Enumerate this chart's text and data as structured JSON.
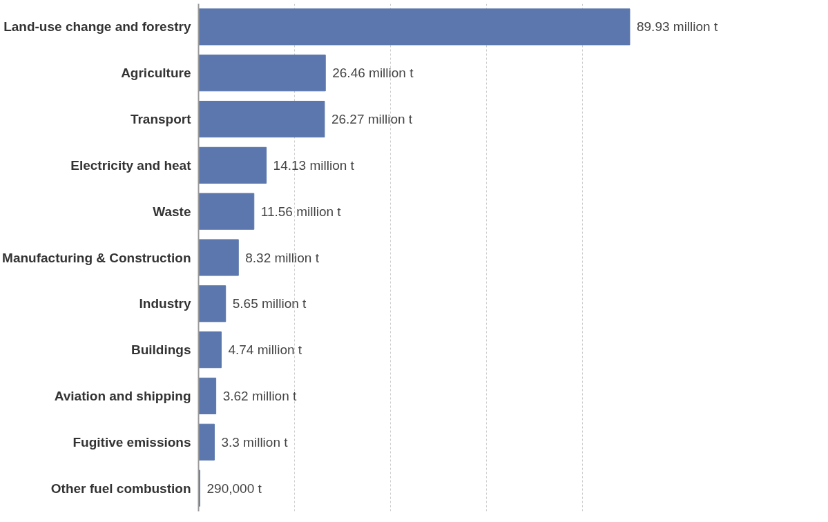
{
  "chart_data": {
    "type": "bar",
    "orientation": "horizontal",
    "categories": [
      "Land-use change and forestry",
      "Agriculture",
      "Transport",
      "Electricity and heat",
      "Waste",
      "Manufacturing & Construction",
      "Industry",
      "Buildings",
      "Aviation and shipping",
      "Fugitive emissions",
      "Other fuel combustion"
    ],
    "values": [
      89930000,
      26460000,
      26270000,
      14130000,
      11560000,
      8320000,
      5650000,
      4740000,
      3620000,
      3300000,
      290000
    ],
    "value_labels": [
      "89.93 million t",
      "26.46 million t",
      "26.27 million t",
      "14.13 million t",
      "11.56 million t",
      "8.32 million t",
      "5.65 million t",
      "4.74 million t",
      "3.62 million t",
      "3.3 million t",
      "290,000 t"
    ],
    "color": "#5b77ad",
    "xticks": [
      {
        "value": 20000000,
        "label": null
      },
      {
        "value": 40000000,
        "label": null
      },
      {
        "value": 60000000,
        "label": null
      },
      {
        "value": 80000000,
        "label": null
      }
    ],
    "grid": "x",
    "tick_labels": "y"
  }
}
